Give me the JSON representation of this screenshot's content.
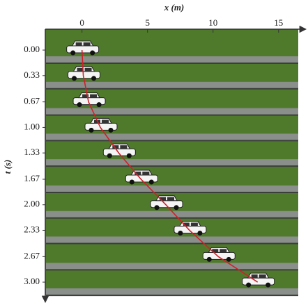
{
  "chart_data": {
    "type": "scatter",
    "xlabel": "x (m)",
    "ylabel": "t (s)",
    "x": [
      0,
      0.1,
      0.5,
      1.4,
      2.8,
      4.5,
      6.4,
      8.2,
      10.4,
      13.4
    ],
    "y": [
      0,
      0.33,
      0.67,
      1,
      1.33,
      1.67,
      2,
      2.33,
      2.67,
      3
    ],
    "line_color": "#d0202a",
    "xlim": [
      -2.8,
      16.5
    ],
    "xticks": [
      0,
      5,
      10,
      15
    ],
    "ylim": [
      -0.27,
      3.17
    ],
    "yticks": [
      {
        "value": 0,
        "label": "0.00"
      },
      {
        "value": 0.33,
        "label": "0.33"
      },
      {
        "value": 0.67,
        "label": "0.67"
      },
      {
        "value": 1,
        "label": "1.00"
      },
      {
        "value": 1.33,
        "label": "1.33"
      },
      {
        "value": 1.67,
        "label": "1.67"
      },
      {
        "value": 2,
        "label": "2.00"
      },
      {
        "value": 2.33,
        "label": "2.33"
      },
      {
        "value": 2.67,
        "label": "2.67"
      },
      {
        "value": 3,
        "label": "3.00"
      }
    ]
  }
}
